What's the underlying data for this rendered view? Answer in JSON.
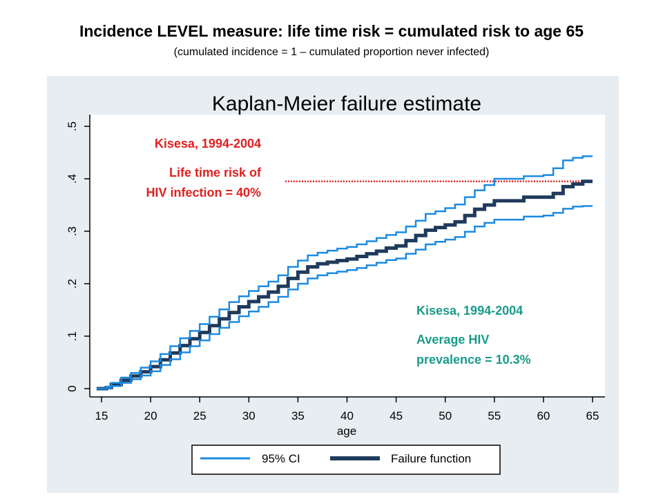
{
  "slide": {
    "title": "Incidence LEVEL measure: life time risk = cumulated risk to age 65",
    "subtitle": "(cumulated incidence = 1 – cumulated proportion never infected)"
  },
  "colors": {
    "ci": "#1a8ae0",
    "failure": "#1f3b5c",
    "reference": "#e02020",
    "annotation_red": "#e02020",
    "annotation_teal": "#1a9a8a",
    "panel_bg": "#e7edf1"
  },
  "chart_data": {
    "type": "line",
    "title": "Kaplan-Meier failure estimate",
    "xlabel": "age",
    "ylabel": "",
    "xlim": [
      15,
      65
    ],
    "ylim": [
      0,
      0.5
    ],
    "x_ticks": [
      15,
      20,
      25,
      30,
      35,
      40,
      45,
      50,
      55,
      60,
      65
    ],
    "y_ticks": [
      0,
      0.1,
      0.2,
      0.3,
      0.4,
      0.5
    ],
    "y_tick_labels": [
      "0",
      ".1",
      ".2",
      ".3",
      ".4",
      ".5"
    ],
    "grid": false,
    "legend_position": "bottom",
    "legend": [
      "95% CI",
      "Failure function"
    ],
    "reference_line": {
      "y": 0.395,
      "x_start": 33.7,
      "x_end": 65,
      "style": "dotted"
    },
    "series": [
      {
        "name": "Failure function",
        "x": [
          14.5,
          15.5,
          16,
          17,
          18,
          19,
          20,
          21,
          22,
          23,
          24,
          25,
          26,
          27,
          28,
          29,
          30,
          31,
          32,
          33,
          34,
          35,
          36,
          37,
          38,
          39,
          40,
          41,
          42,
          43,
          44,
          45,
          46,
          47,
          48,
          49,
          50,
          51,
          52,
          53,
          54,
          55,
          56,
          57,
          58,
          59,
          60,
          61,
          62,
          63,
          64,
          65
        ],
        "y": [
          0,
          0.002,
          0.008,
          0.016,
          0.024,
          0.032,
          0.042,
          0.055,
          0.068,
          0.082,
          0.095,
          0.107,
          0.12,
          0.133,
          0.145,
          0.156,
          0.166,
          0.175,
          0.184,
          0.195,
          0.21,
          0.222,
          0.232,
          0.238,
          0.241,
          0.244,
          0.247,
          0.252,
          0.257,
          0.262,
          0.268,
          0.272,
          0.282,
          0.292,
          0.302,
          0.307,
          0.312,
          0.318,
          0.33,
          0.342,
          0.35,
          0.358,
          0.358,
          0.358,
          0.365,
          0.365,
          0.365,
          0.372,
          0.385,
          0.39,
          0.395,
          0.395
        ]
      },
      {
        "name": "95% CI upper",
        "x": [
          14.5,
          15.5,
          16,
          17,
          18,
          19,
          20,
          21,
          22,
          23,
          24,
          25,
          26,
          27,
          28,
          29,
          30,
          31,
          32,
          33,
          34,
          35,
          36,
          37,
          38,
          39,
          40,
          41,
          42,
          43,
          44,
          45,
          46,
          47,
          48,
          49,
          50,
          51,
          52,
          53,
          54,
          55,
          56,
          57,
          58,
          59,
          60,
          61,
          62,
          63,
          64,
          65
        ],
        "y": [
          0,
          0.004,
          0.011,
          0.021,
          0.03,
          0.04,
          0.052,
          0.066,
          0.081,
          0.096,
          0.11,
          0.123,
          0.137,
          0.151,
          0.165,
          0.176,
          0.186,
          0.195,
          0.204,
          0.216,
          0.232,
          0.244,
          0.254,
          0.259,
          0.263,
          0.267,
          0.27,
          0.275,
          0.281,
          0.287,
          0.293,
          0.298,
          0.309,
          0.32,
          0.333,
          0.338,
          0.344,
          0.351,
          0.365,
          0.378,
          0.388,
          0.4,
          0.4,
          0.4,
          0.405,
          0.405,
          0.407,
          0.42,
          0.435,
          0.44,
          0.443,
          0.443
        ]
      },
      {
        "name": "95% CI lower",
        "x": [
          14.5,
          15.5,
          16,
          17,
          18,
          19,
          20,
          21,
          22,
          23,
          24,
          25,
          26,
          27,
          28,
          29,
          30,
          31,
          32,
          33,
          34,
          35,
          36,
          37,
          38,
          39,
          40,
          41,
          42,
          43,
          44,
          45,
          46,
          47,
          48,
          49,
          50,
          51,
          52,
          53,
          54,
          55,
          56,
          57,
          58,
          59,
          60,
          61,
          62,
          63,
          64,
          65
        ],
        "y": [
          0,
          0.001,
          0.005,
          0.011,
          0.018,
          0.025,
          0.033,
          0.045,
          0.056,
          0.069,
          0.081,
          0.092,
          0.104,
          0.116,
          0.127,
          0.138,
          0.147,
          0.156,
          0.165,
          0.175,
          0.189,
          0.2,
          0.21,
          0.216,
          0.22,
          0.223,
          0.226,
          0.23,
          0.235,
          0.24,
          0.245,
          0.248,
          0.257,
          0.265,
          0.275,
          0.28,
          0.284,
          0.289,
          0.299,
          0.309,
          0.316,
          0.322,
          0.322,
          0.322,
          0.328,
          0.328,
          0.33,
          0.335,
          0.343,
          0.347,
          0.348,
          0.348
        ]
      }
    ],
    "annotations": {
      "red_site": "Kisesa, 1994-2004",
      "red_line1": "Life time risk of",
      "red_line2": "HIV infection = 40%",
      "teal_site": "Kisesa, 1994-2004",
      "teal_line1": "Average HIV",
      "teal_line2": "prevalence = 10.3%"
    }
  }
}
